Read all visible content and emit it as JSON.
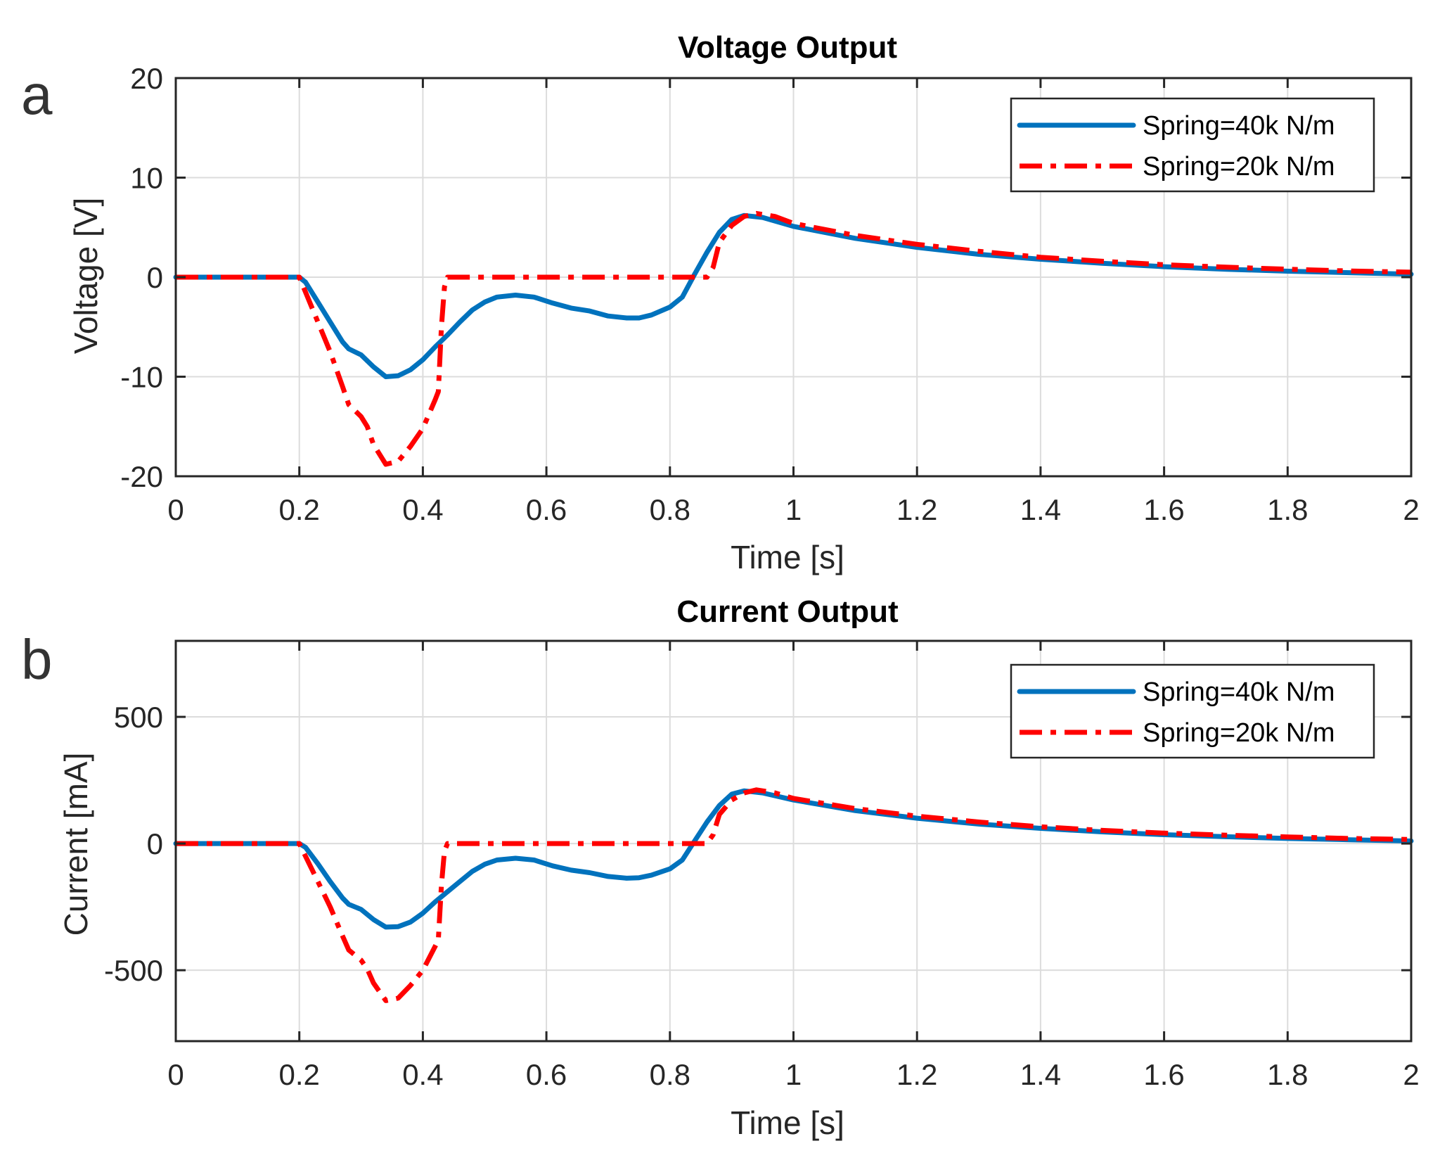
{
  "chart_data": [
    {
      "panel": "a",
      "type": "line",
      "title": "Voltage Output",
      "xlabel": "Time [s]",
      "ylabel": "Voltage [V]",
      "xlim": [
        0,
        2
      ],
      "ylim": [
        -20,
        20
      ],
      "xticks": [
        0,
        0.2,
        0.4,
        0.6,
        0.8,
        1,
        1.2,
        1.4,
        1.6,
        1.8,
        2
      ],
      "xtick_labels": [
        "0",
        "0.2",
        "0.4",
        "0.6",
        "0.8",
        "1",
        "1.2",
        "1.4",
        "1.6",
        "1.8",
        "2"
      ],
      "yticks": [
        -20,
        -10,
        0,
        10,
        20
      ],
      "ytick_labels": [
        "-20",
        "-10",
        "0",
        "10",
        "20"
      ],
      "grid": true,
      "legend_position": "top-right",
      "series": [
        {
          "name": "Spring=40k N/m",
          "color": "#0072BD",
          "style": "solid",
          "points": [
            [
              0,
              0
            ],
            [
              0.2,
              0
            ],
            [
              0.21,
              -0.5
            ],
            [
              0.23,
              -2.5
            ],
            [
              0.25,
              -4.5
            ],
            [
              0.27,
              -6.5
            ],
            [
              0.28,
              -7.2
            ],
            [
              0.3,
              -7.8
            ],
            [
              0.32,
              -9
            ],
            [
              0.34,
              -10
            ],
            [
              0.36,
              -9.9
            ],
            [
              0.38,
              -9.3
            ],
            [
              0.4,
              -8.3
            ],
            [
              0.42,
              -7
            ],
            [
              0.44,
              -5.8
            ],
            [
              0.46,
              -4.5
            ],
            [
              0.48,
              -3.3
            ],
            [
              0.5,
              -2.5
            ],
            [
              0.52,
              -2
            ],
            [
              0.55,
              -1.8
            ],
            [
              0.58,
              -2
            ],
            [
              0.61,
              -2.6
            ],
            [
              0.64,
              -3.1
            ],
            [
              0.67,
              -3.4
            ],
            [
              0.7,
              -3.9
            ],
            [
              0.73,
              -4.1
            ],
            [
              0.75,
              -4.1
            ],
            [
              0.77,
              -3.8
            ],
            [
              0.8,
              -3
            ],
            [
              0.82,
              -2
            ],
            [
              0.84,
              0.3
            ],
            [
              0.86,
              2.5
            ],
            [
              0.88,
              4.5
            ],
            [
              0.9,
              5.8
            ],
            [
              0.92,
              6.2
            ],
            [
              0.95,
              6
            ],
            [
              1,
              5.1
            ],
            [
              1.1,
              3.9
            ],
            [
              1.2,
              3
            ],
            [
              1.3,
              2.3
            ],
            [
              1.4,
              1.8
            ],
            [
              1.5,
              1.4
            ],
            [
              1.6,
              1.05
            ],
            [
              1.7,
              0.8
            ],
            [
              1.8,
              0.6
            ],
            [
              1.9,
              0.45
            ],
            [
              2,
              0.3
            ]
          ]
        },
        {
          "name": "Spring=20k N/m",
          "color": "#FF0000",
          "style": "dashdot",
          "points": [
            [
              0,
              0
            ],
            [
              0.2,
              0
            ],
            [
              0.21,
              -1.5
            ],
            [
              0.23,
              -4.5
            ],
            [
              0.25,
              -7.5
            ],
            [
              0.27,
              -11
            ],
            [
              0.28,
              -12.8
            ],
            [
              0.3,
              -14
            ],
            [
              0.31,
              -15
            ],
            [
              0.32,
              -16.8
            ],
            [
              0.34,
              -18.8
            ],
            [
              0.36,
              -18.5
            ],
            [
              0.38,
              -17
            ],
            [
              0.4,
              -15.2
            ],
            [
              0.42,
              -12.3
            ],
            [
              0.425,
              -11.5
            ],
            [
              0.43,
              -5
            ],
            [
              0.435,
              -1
            ],
            [
              0.44,
              0
            ],
            [
              0.5,
              0
            ],
            [
              0.6,
              0
            ],
            [
              0.7,
              0
            ],
            [
              0.8,
              0
            ],
            [
              0.86,
              0
            ],
            [
              0.87,
              1
            ],
            [
              0.88,
              3.5
            ],
            [
              0.9,
              5.2
            ],
            [
              0.92,
              6.1
            ],
            [
              0.94,
              6.4
            ],
            [
              0.97,
              6.1
            ],
            [
              1,
              5.4
            ],
            [
              1.1,
              4.2
            ],
            [
              1.2,
              3.3
            ],
            [
              1.3,
              2.6
            ],
            [
              1.4,
              2
            ],
            [
              1.5,
              1.6
            ],
            [
              1.6,
              1.25
            ],
            [
              1.7,
              1
            ],
            [
              1.8,
              0.8
            ],
            [
              1.9,
              0.62
            ],
            [
              2,
              0.5
            ]
          ]
        }
      ]
    },
    {
      "panel": "b",
      "type": "line",
      "title": "Current Output",
      "xlabel": "Time [s]",
      "ylabel": "Current [mA]",
      "xlim": [
        0,
        2
      ],
      "ylim": [
        -780,
        800
      ],
      "xticks": [
        0,
        0.2,
        0.4,
        0.6,
        0.8,
        1,
        1.2,
        1.4,
        1.6,
        1.8,
        2
      ],
      "xtick_labels": [
        "0",
        "0.2",
        "0.4",
        "0.6",
        "0.8",
        "1",
        "1.2",
        "1.4",
        "1.6",
        "1.8",
        "2"
      ],
      "yticks": [
        -500,
        0,
        500
      ],
      "ytick_labels": [
        "-500",
        "0",
        "500"
      ],
      "grid": true,
      "legend_position": "top-right",
      "series": [
        {
          "name": "Spring=40k N/m",
          "color": "#0072BD",
          "style": "solid",
          "points": [
            [
              0,
              0
            ],
            [
              0.2,
              0
            ],
            [
              0.21,
              -15
            ],
            [
              0.23,
              -80
            ],
            [
              0.25,
              -150
            ],
            [
              0.27,
              -215
            ],
            [
              0.28,
              -240
            ],
            [
              0.3,
              -260
            ],
            [
              0.32,
              -300
            ],
            [
              0.34,
              -330
            ],
            [
              0.36,
              -328
            ],
            [
              0.38,
              -310
            ],
            [
              0.4,
              -275
            ],
            [
              0.42,
              -230
            ],
            [
              0.44,
              -190
            ],
            [
              0.46,
              -150
            ],
            [
              0.48,
              -110
            ],
            [
              0.5,
              -82
            ],
            [
              0.52,
              -65
            ],
            [
              0.55,
              -58
            ],
            [
              0.58,
              -65
            ],
            [
              0.61,
              -88
            ],
            [
              0.64,
              -105
            ],
            [
              0.67,
              -115
            ],
            [
              0.7,
              -130
            ],
            [
              0.73,
              -137
            ],
            [
              0.75,
              -135
            ],
            [
              0.77,
              -125
            ],
            [
              0.8,
              -100
            ],
            [
              0.82,
              -65
            ],
            [
              0.84,
              10
            ],
            [
              0.86,
              85
            ],
            [
              0.88,
              150
            ],
            [
              0.9,
              195
            ],
            [
              0.92,
              208
            ],
            [
              0.95,
              200
            ],
            [
              1,
              172
            ],
            [
              1.1,
              130
            ],
            [
              1.2,
              100
            ],
            [
              1.3,
              77
            ],
            [
              1.4,
              60
            ],
            [
              1.5,
              46
            ],
            [
              1.6,
              35
            ],
            [
              1.7,
              27
            ],
            [
              1.8,
              20
            ],
            [
              1.9,
              15
            ],
            [
              2,
              10
            ]
          ]
        },
        {
          "name": "Spring=20k N/m",
          "color": "#FF0000",
          "style": "dashdot",
          "points": [
            [
              0,
              0
            ],
            [
              0.2,
              0
            ],
            [
              0.21,
              -50
            ],
            [
              0.23,
              -150
            ],
            [
              0.25,
              -250
            ],
            [
              0.27,
              -365
            ],
            [
              0.28,
              -420
            ],
            [
              0.3,
              -460
            ],
            [
              0.31,
              -495
            ],
            [
              0.32,
              -550
            ],
            [
              0.34,
              -620
            ],
            [
              0.36,
              -610
            ],
            [
              0.38,
              -560
            ],
            [
              0.4,
              -500
            ],
            [
              0.42,
              -405
            ],
            [
              0.425,
              -380
            ],
            [
              0.43,
              -165
            ],
            [
              0.435,
              -30
            ],
            [
              0.44,
              0
            ],
            [
              0.5,
              0
            ],
            [
              0.6,
              0
            ],
            [
              0.7,
              0
            ],
            [
              0.8,
              0
            ],
            [
              0.86,
              0
            ],
            [
              0.87,
              35
            ],
            [
              0.88,
              115
            ],
            [
              0.9,
              172
            ],
            [
              0.92,
              200
            ],
            [
              0.94,
              212
            ],
            [
              0.97,
              200
            ],
            [
              1,
              178
            ],
            [
              1.1,
              138
            ],
            [
              1.2,
              108
            ],
            [
              1.3,
              85
            ],
            [
              1.4,
              66
            ],
            [
              1.5,
              52
            ],
            [
              1.6,
              41
            ],
            [
              1.7,
              33
            ],
            [
              1.8,
              26
            ],
            [
              1.9,
              20
            ],
            [
              2,
              16
            ]
          ]
        }
      ]
    }
  ]
}
